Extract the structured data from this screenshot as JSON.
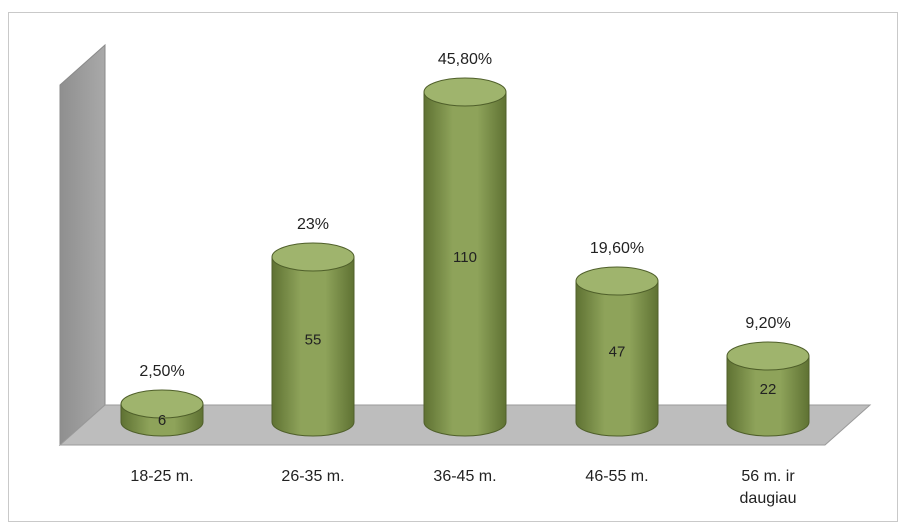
{
  "chart_data": {
    "type": "bar",
    "style": "3d-cylinder",
    "categories": [
      "18-25 m.",
      "26-35 m.",
      "36-45 m.",
      "46-55 m.",
      "56 m. ir daugiau"
    ],
    "category_lines": [
      [
        "18-25 m."
      ],
      [
        "26-35 m."
      ],
      [
        "36-45 m."
      ],
      [
        "46-55 m."
      ],
      [
        "56 m. ir",
        "daugiau"
      ]
    ],
    "values": [
      6,
      55,
      110,
      47,
      22
    ],
    "percent_labels": [
      "2,50%",
      "23%",
      "45,80%",
      "19,60%",
      "9,20%"
    ],
    "percentages": [
      2.5,
      23,
      45.8,
      19.6,
      9.2
    ],
    "ylim": [
      0,
      110
    ],
    "grid": false,
    "legend": "none",
    "colors": {
      "bar_body": "#8ea35a",
      "bar_dark": "#5f7233",
      "bar_top": "#9fb46d",
      "wall": "#a9a9a9",
      "floor": "#bdbdbd"
    }
  }
}
